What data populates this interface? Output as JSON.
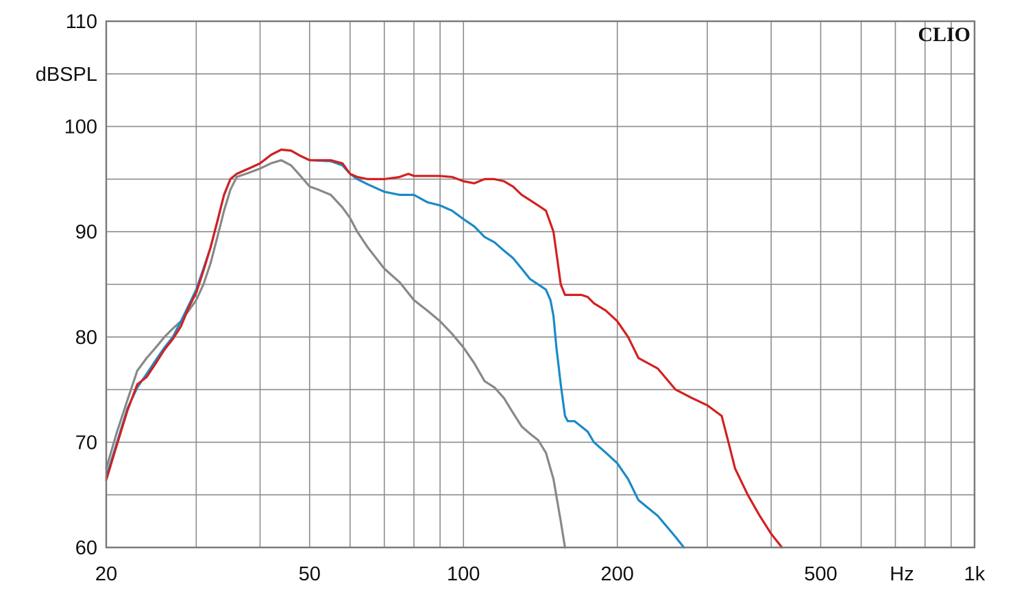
{
  "chart_data": {
    "type": "line",
    "brand": "CLIO",
    "ylabel": "dBSPL",
    "xunit": "Hz",
    "x_scale": "log",
    "xlim": [
      20,
      1000
    ],
    "ylim": [
      60,
      110
    ],
    "grid": true,
    "x_ticks": [
      20,
      30,
      40,
      50,
      60,
      70,
      80,
      90,
      100,
      200,
      300,
      400,
      500,
      600,
      700,
      800,
      900,
      1000
    ],
    "x_tick_labels": [
      {
        "value": 20,
        "label": "20"
      },
      {
        "value": 50,
        "label": "50"
      },
      {
        "value": 100,
        "label": "100"
      },
      {
        "value": 200,
        "label": "200"
      },
      {
        "value": 500,
        "label": "500"
      },
      {
        "value": 1000,
        "label": "1k"
      }
    ],
    "y_ticks": [
      60,
      65,
      70,
      75,
      80,
      85,
      90,
      95,
      100,
      105,
      110
    ],
    "y_tick_labels": [
      {
        "value": 110,
        "label": "110"
      },
      {
        "value": 100,
        "label": "100"
      },
      {
        "value": 90,
        "label": "90"
      },
      {
        "value": 80,
        "label": "80"
      },
      {
        "value": 70,
        "label": "70"
      },
      {
        "value": 60,
        "label": "60"
      }
    ],
    "series": [
      {
        "color": "#888888",
        "points": [
          [
            20,
            67.5
          ],
          [
            21,
            71
          ],
          [
            22,
            74
          ],
          [
            23,
            76.8
          ],
          [
            24,
            78
          ],
          [
            25,
            79
          ],
          [
            26,
            80
          ],
          [
            27,
            80.8
          ],
          [
            28,
            81.5
          ],
          [
            29,
            82.5
          ],
          [
            30,
            83.5
          ],
          [
            31,
            85
          ],
          [
            32,
            87
          ],
          [
            33,
            89.5
          ],
          [
            34,
            92
          ],
          [
            35,
            94
          ],
          [
            36,
            95.2
          ],
          [
            38,
            95.6
          ],
          [
            40,
            96
          ],
          [
            42,
            96.5
          ],
          [
            44,
            96.8
          ],
          [
            46,
            96.3
          ],
          [
            48,
            95.3
          ],
          [
            50,
            94.3
          ],
          [
            52,
            94
          ],
          [
            55,
            93.5
          ],
          [
            58,
            92.3
          ],
          [
            60,
            91.3
          ],
          [
            62,
            90
          ],
          [
            65,
            88.5
          ],
          [
            70,
            86.5
          ],
          [
            75,
            85.2
          ],
          [
            80,
            83.5
          ],
          [
            85,
            82.5
          ],
          [
            90,
            81.5
          ],
          [
            95,
            80.3
          ],
          [
            100,
            79
          ],
          [
            105,
            77.5
          ],
          [
            110,
            75.8
          ],
          [
            115,
            75.2
          ],
          [
            120,
            74.2
          ],
          [
            125,
            72.8
          ],
          [
            130,
            71.5
          ],
          [
            135,
            70.8
          ],
          [
            140,
            70.2
          ],
          [
            145,
            69
          ],
          [
            150,
            66.5
          ],
          [
            155,
            62.5
          ],
          [
            158,
            60
          ]
        ]
      },
      {
        "color": "#1a8ac8",
        "points": [
          [
            20,
            66.7
          ],
          [
            21,
            70
          ],
          [
            22,
            73.2
          ],
          [
            23,
            75.2
          ],
          [
            24,
            76.5
          ],
          [
            25,
            77.8
          ],
          [
            26,
            79
          ],
          [
            27,
            80
          ],
          [
            28,
            81.5
          ],
          [
            29,
            83
          ],
          [
            30,
            84.5
          ],
          [
            31,
            86.5
          ],
          [
            32,
            88.5
          ],
          [
            33,
            91
          ],
          [
            34,
            93.5
          ],
          [
            35,
            95
          ],
          [
            36,
            95.5
          ],
          [
            38,
            96
          ],
          [
            40,
            96.5
          ],
          [
            42,
            97.3
          ],
          [
            44,
            97.8
          ],
          [
            46,
            97.7
          ],
          [
            48,
            97.2
          ],
          [
            50,
            96.8
          ],
          [
            55,
            96.7
          ],
          [
            58,
            96.3
          ],
          [
            60,
            95.5
          ],
          [
            62,
            95
          ],
          [
            65,
            94.5
          ],
          [
            70,
            93.8
          ],
          [
            75,
            93.5
          ],
          [
            80,
            93.5
          ],
          [
            85,
            92.8
          ],
          [
            90,
            92.5
          ],
          [
            95,
            92
          ],
          [
            100,
            91.2
          ],
          [
            105,
            90.5
          ],
          [
            110,
            89.5
          ],
          [
            115,
            89
          ],
          [
            120,
            88.2
          ],
          [
            125,
            87.5
          ],
          [
            130,
            86.5
          ],
          [
            135,
            85.5
          ],
          [
            140,
            85
          ],
          [
            145,
            84.5
          ],
          [
            148,
            83.5
          ],
          [
            150,
            82
          ],
          [
            152,
            79
          ],
          [
            155,
            75.5
          ],
          [
            158,
            72.5
          ],
          [
            160,
            72
          ],
          [
            165,
            72
          ],
          [
            170,
            71.5
          ],
          [
            175,
            71
          ],
          [
            180,
            70
          ],
          [
            190,
            69
          ],
          [
            200,
            68
          ],
          [
            210,
            66.5
          ],
          [
            220,
            64.5
          ],
          [
            240,
            63
          ],
          [
            260,
            61
          ],
          [
            270,
            60
          ]
        ]
      },
      {
        "color": "#d42020",
        "points": [
          [
            20,
            66.4
          ],
          [
            21,
            69.8
          ],
          [
            22,
            73
          ],
          [
            23,
            75.5
          ],
          [
            24,
            76.2
          ],
          [
            25,
            77.5
          ],
          [
            26,
            78.8
          ],
          [
            27,
            79.8
          ],
          [
            28,
            81
          ],
          [
            29,
            82.8
          ],
          [
            30,
            84.2
          ],
          [
            31,
            86.3
          ],
          [
            32,
            88.5
          ],
          [
            33,
            91
          ],
          [
            34,
            93.5
          ],
          [
            35,
            95
          ],
          [
            36,
            95.5
          ],
          [
            38,
            96
          ],
          [
            40,
            96.5
          ],
          [
            42,
            97.3
          ],
          [
            44,
            97.8
          ],
          [
            46,
            97.7
          ],
          [
            48,
            97.2
          ],
          [
            50,
            96.8
          ],
          [
            55,
            96.8
          ],
          [
            58,
            96.5
          ],
          [
            60,
            95.5
          ],
          [
            62,
            95.2
          ],
          [
            65,
            95
          ],
          [
            70,
            95
          ],
          [
            75,
            95.2
          ],
          [
            78,
            95.5
          ],
          [
            80,
            95.3
          ],
          [
            85,
            95.3
          ],
          [
            90,
            95.3
          ],
          [
            95,
            95.2
          ],
          [
            100,
            94.8
          ],
          [
            105,
            94.6
          ],
          [
            110,
            95
          ],
          [
            115,
            95
          ],
          [
            120,
            94.8
          ],
          [
            125,
            94.3
          ],
          [
            130,
            93.5
          ],
          [
            135,
            93
          ],
          [
            140,
            92.5
          ],
          [
            145,
            92
          ],
          [
            150,
            90
          ],
          [
            153,
            87
          ],
          [
            155,
            85
          ],
          [
            158,
            84
          ],
          [
            165,
            84
          ],
          [
            170,
            84
          ],
          [
            175,
            83.8
          ],
          [
            180,
            83.2
          ],
          [
            190,
            82.5
          ],
          [
            200,
            81.5
          ],
          [
            210,
            80
          ],
          [
            220,
            78
          ],
          [
            240,
            77
          ],
          [
            260,
            75
          ],
          [
            280,
            74.2
          ],
          [
            300,
            73.5
          ],
          [
            320,
            72.5
          ],
          [
            330,
            70
          ],
          [
            340,
            67.5
          ],
          [
            360,
            65
          ],
          [
            380,
            63
          ],
          [
            400,
            61.3
          ],
          [
            420,
            60
          ]
        ]
      }
    ]
  }
}
